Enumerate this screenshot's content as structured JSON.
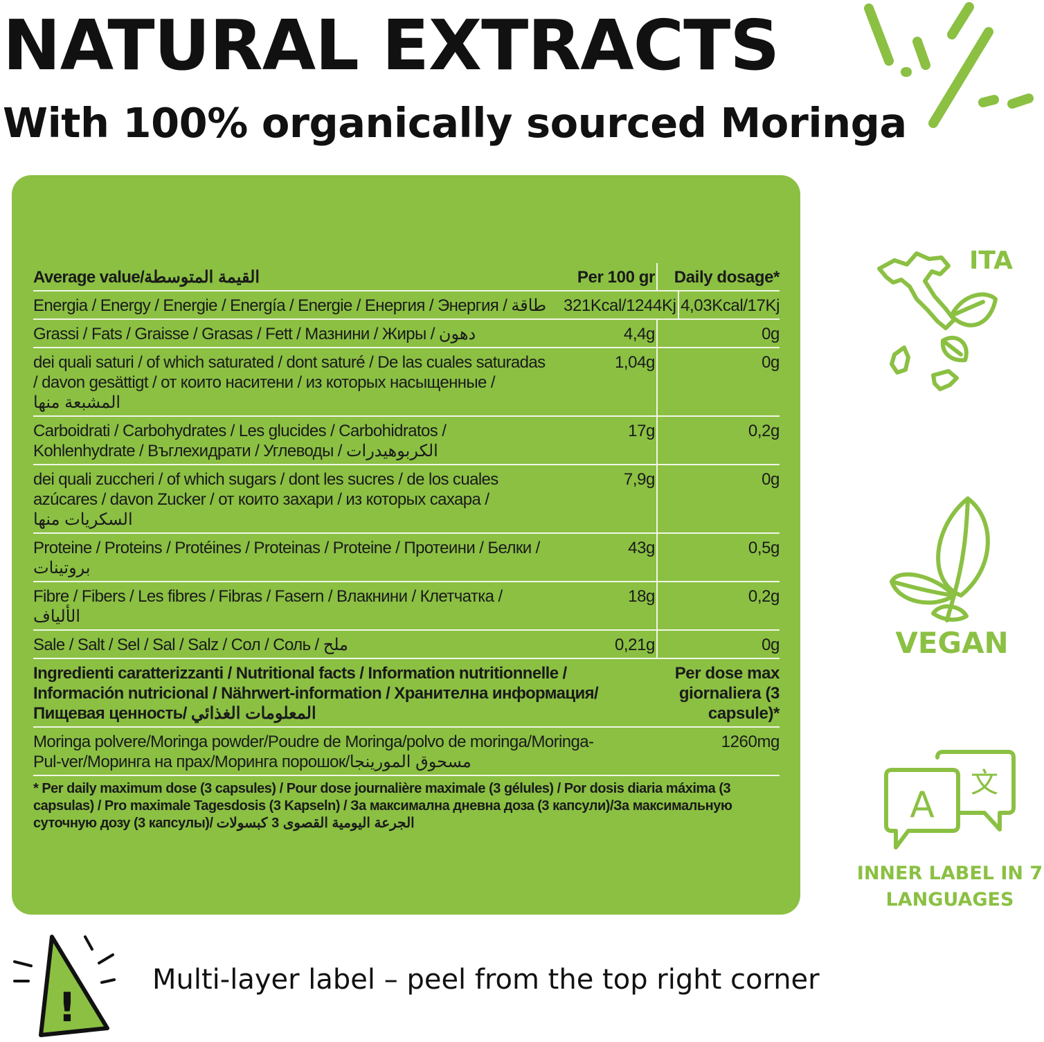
{
  "header": {
    "title": "NATURAL EXTRACTS",
    "subtitle": "With 100% organically sourced Moringa"
  },
  "table": {
    "head": {
      "label": "Average value/القيمة المتوسطة",
      "per100": "Per 100 gr",
      "daily": "Daily dosage*"
    },
    "rows": [
      {
        "label": "Energia / Energy / Energie / Energía / Energie / Енергия / Энергия / طاقة",
        "per100": "321Kcal/1244Kj",
        "daily": "4,03Kcal/17Kj"
      },
      {
        "label": "Grassi / Fats / Graisse / Grasas / Fett / Мазнини / Жиры / دهون",
        "per100": "4,4g",
        "daily": "0g"
      },
      {
        "label": "dei quali saturi / of which saturated / dont saturé / De las cuales saturadas / davon gesättigt / от които наситени / из которых насыщенные / المشبعة منها",
        "per100": "1,04g",
        "daily": "0g"
      },
      {
        "label": "Carboidrati / Carbohydrates / Les glucides / Carbohidratos / Kohlenhydrate / Въглехидрати / Углеводы / الكربوهيدرات",
        "per100": "17g",
        "daily": "0,2g"
      },
      {
        "label": "dei quali zuccheri / of which sugars / dont les sucres / de los cuales azúcares / davon Zucker / от които захари / из которых сахара / السكريات منها",
        "per100": "7,9g",
        "daily": "0g"
      },
      {
        "label": "Proteine / Proteins / Protéines / Proteinas / Proteine / Протеини / Белки / بروتينات",
        "per100": "43g",
        "daily": "0,5g"
      },
      {
        "label": "Fibre / Fibers / Les fibres / Fibras / Fasern / Влакнини / Клетчатка / الألياف",
        "per100": "18g",
        "daily": "0,2g"
      },
      {
        "label": "Sale / Salt / Sel / Sal / Salz / Сол / Соль / ملح",
        "per100": "0,21g",
        "daily": "0g"
      }
    ],
    "ingredients_head": {
      "label": "Ingredienti caratterizzanti / Nutritional facts / Information nutritionnelle / Información nutricional / Nährwert-information / Хранителна информация/Пищевая ценность/ المعلومات الغذائي",
      "dose": "Per dose max giornaliera (3 capsule)*"
    },
    "ingredient": {
      "label": "Moringa polvere/Moringa powder/Poudre de Moringa/polvo de moringa/Moringa-Pul-ver/Моринга на прах/Моринга порошок/مسحوق المورينجا",
      "dose": "1260mg"
    },
    "footnote": "* Per daily maximum dose (3 capsules) / Pour dose journalière maximale (3 gélules) / Por dosis diaria máxima (3 capsulas) / Pro maximale Tagesdosis (3 Kapseln) / За максимална дневна доза (3 капсули)/За максимальную суточную дозу (3 капсулы)/ الجرعة اليومية القصوى 3 كبسولات"
  },
  "badges": {
    "ita": "ITA",
    "vegan": "VEGAN",
    "languages": "INNER LABEL IN 7 LANGUAGES",
    "lang_glyph_a": "A",
    "lang_glyph_b": "文"
  },
  "warning": {
    "symbol": "!",
    "text": "Multi-layer label – peel from the top right corner"
  },
  "colors": {
    "accent": "#8bc043",
    "text": "#111111",
    "panel": "#8bc043"
  }
}
